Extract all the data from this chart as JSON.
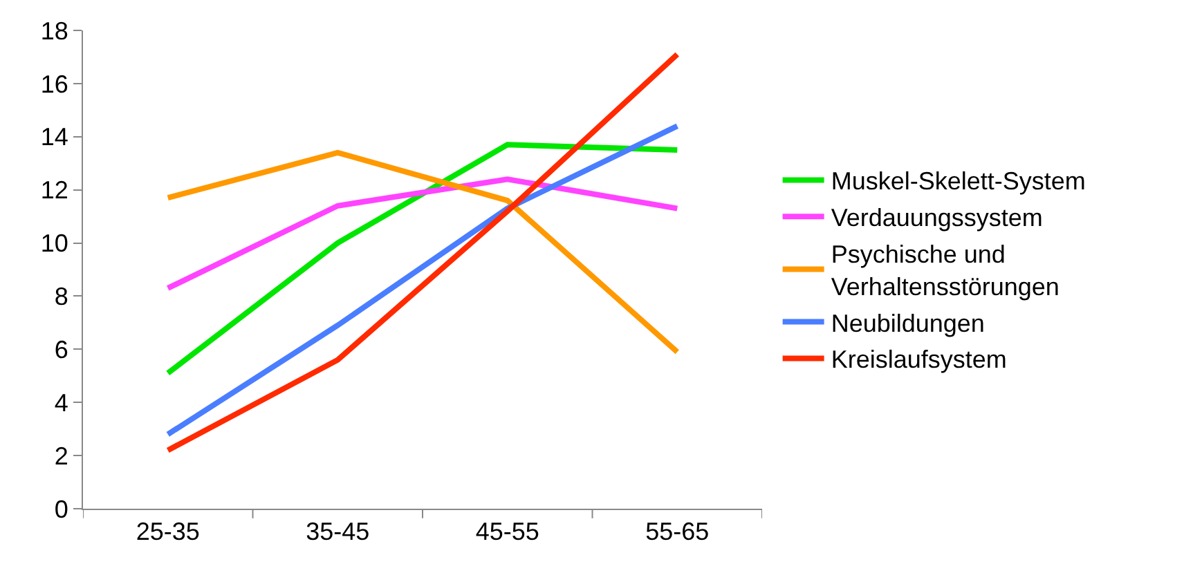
{
  "chart_data": {
    "type": "line",
    "categories": [
      "25-35",
      "35-45",
      "45-55",
      "55-65"
    ],
    "ylim": [
      0,
      18
    ],
    "yticks": [
      0,
      2,
      4,
      6,
      8,
      10,
      12,
      14,
      16,
      18
    ],
    "grid": false,
    "legend": "right",
    "marker": "none",
    "line_style": "solid",
    "series": [
      {
        "name": "Muskel-Skelett-System",
        "color": "#00e600",
        "values": [
          5.1,
          10.0,
          13.7,
          13.5
        ]
      },
      {
        "name": "Verdauungssystem",
        "color": "#ff44ff",
        "values": [
          8.3,
          11.4,
          12.4,
          11.3
        ]
      },
      {
        "name": "Psychische und Verhaltensstörungen",
        "color": "#ff9900",
        "values": [
          11.7,
          13.4,
          11.6,
          5.9
        ]
      },
      {
        "name": "Neubildungen",
        "color": "#4a7eff",
        "values": [
          2.8,
          6.9,
          11.3,
          14.4
        ]
      },
      {
        "name": "Kreislaufsystem",
        "color": "#ff2a00",
        "values": [
          2.2,
          5.6,
          11.2,
          17.1
        ]
      }
    ]
  }
}
